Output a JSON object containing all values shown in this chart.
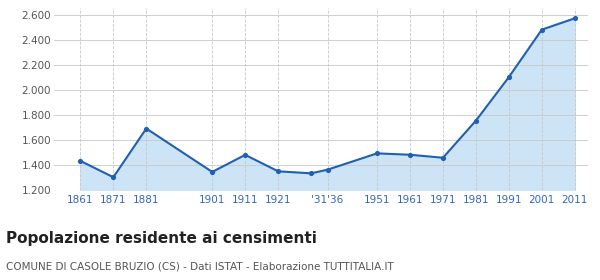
{
  "values": [
    1435,
    1305,
    1693,
    1347,
    1483,
    1352,
    1336,
    1365,
    1495,
    1484,
    1460,
    1756,
    2103,
    2481,
    2571
  ],
  "x_pos_plot": [
    1861,
    1871,
    1881,
    1901,
    1911,
    1921,
    1931,
    1936,
    1951,
    1961,
    1971,
    1981,
    1991,
    2001,
    2011
  ],
  "values_plot": [
    1435,
    1305,
    1693,
    1347,
    1483,
    1352,
    1336,
    1365,
    1495,
    1484,
    1460,
    1756,
    2103,
    2481,
    2571
  ],
  "line_color": "#2060b0",
  "fill_color": "#cce4f5",
  "marker_color": "#2060b0",
  "grid_color_h": "#c8c8c8",
  "grid_color_v": "#c8c8c8",
  "bg_color": "#ffffff",
  "ylim": [
    1200,
    2650
  ],
  "yticks": [
    1200,
    1400,
    1600,
    1800,
    2000,
    2200,
    2400,
    2600
  ],
  "xtick_positions": [
    1861,
    1871,
    1881,
    1901,
    1911,
    1921,
    1936,
    1951,
    1961,
    1971,
    1981,
    1991,
    2001,
    2011
  ],
  "xtick_labels": [
    "1861",
    "1871",
    "1881",
    "1901",
    "1911",
    "1921",
    "'31'36",
    "1951",
    "1961",
    "1971",
    "1981",
    "1991",
    "2001",
    "2011"
  ],
  "xlim_left": 1853,
  "xlim_right": 2015,
  "title": "Popolazione residente ai censimenti",
  "subtitle": "COMUNE DI CASOLE BRUZIO (CS) - Dati ISTAT - Elaborazione TUTTITALIA.IT",
  "title_color": "#222222",
  "subtitle_color": "#555555",
  "title_fontsize": 11,
  "subtitle_fontsize": 7.5,
  "tick_label_color": "#3366bb",
  "ytick_label_color": "#555555",
  "tick_fontsize": 7.5
}
